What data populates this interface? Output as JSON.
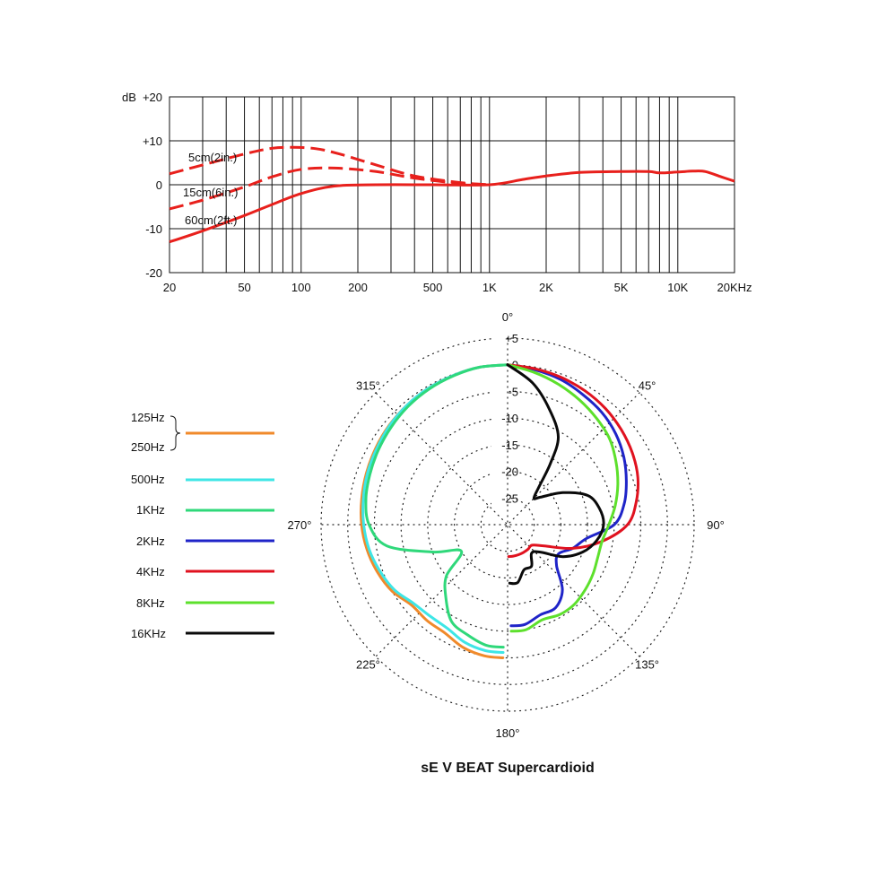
{
  "chart_data": [
    {
      "type": "line",
      "xscale": "log",
      "xlim": [
        20,
        20000
      ],
      "ylim": [
        -20,
        20
      ],
      "y_unit_label": "dB",
      "y_ticks": [
        {
          "value": 20,
          "label": "+20"
        },
        {
          "value": 10,
          "label": "+10"
        },
        {
          "value": 0,
          "label": "0"
        },
        {
          "value": -10,
          "label": "-10"
        },
        {
          "value": -20,
          "label": "-20"
        }
      ],
      "x_ticks": [
        {
          "value": 20,
          "label": "20"
        },
        {
          "value": 50,
          "label": "50"
        },
        {
          "value": 100,
          "label": "100"
        },
        {
          "value": 200,
          "label": "200"
        },
        {
          "value": 500,
          "label": "500"
        },
        {
          "value": 1000,
          "label": "1K"
        },
        {
          "value": 2000,
          "label": "2K"
        },
        {
          "value": 5000,
          "label": "5K"
        },
        {
          "value": 10000,
          "label": "10K"
        },
        {
          "value": 20000,
          "label": "20KHz"
        }
      ],
      "grid": true,
      "series": [
        {
          "name": "5cm(2in.)",
          "style": "dashed",
          "color": "#e8201c",
          "x": [
            20,
            30,
            50,
            70,
            90,
            120,
            160,
            250,
            400,
            700,
            1000
          ],
          "y": [
            2.5,
            4.5,
            7,
            8.3,
            8.5,
            8.2,
            7,
            4.5,
            2,
            0.5,
            0
          ]
        },
        {
          "name": "15cm(6in.)",
          "style": "dashed",
          "color": "#e8201c",
          "x": [
            20,
            30,
            50,
            70,
            100,
            150,
            250,
            400,
            700,
            1000
          ],
          "y": [
            -5.5,
            -3.5,
            -0.5,
            1.8,
            3.5,
            3.8,
            3,
            1.5,
            0.3,
            0
          ]
        },
        {
          "name": "60cm(2ft.)",
          "style": "solid",
          "color": "#e8201c",
          "x": [
            20,
            30,
            50,
            70,
            100,
            150,
            250,
            500,
            1000,
            1500,
            2000,
            3000,
            5000,
            7000,
            8000,
            10000,
            12000,
            14000,
            17000,
            20000
          ],
          "y": [
            -13,
            -10.5,
            -7,
            -4.5,
            -2,
            -0.3,
            0,
            0,
            0,
            1.2,
            2,
            2.8,
            3,
            3,
            2.7,
            2.9,
            3.1,
            3,
            1.8,
            0.8
          ]
        }
      ]
    },
    {
      "type": "polar",
      "title": "sE V BEAT Supercardioid",
      "radial_unit": "dB",
      "radial_ticks": [
        {
          "value": 5,
          "label": "+5"
        },
        {
          "value": 0,
          "label": "0"
        },
        {
          "value": -5,
          "label": "-5"
        },
        {
          "value": -10,
          "label": "-10"
        },
        {
          "value": -15,
          "label": "-15"
        },
        {
          "value": -20,
          "label": "-20"
        },
        {
          "value": -25,
          "label": "-25"
        }
      ],
      "angle_labels": [
        {
          "angle": 0,
          "label": "0°"
        },
        {
          "angle": 45,
          "label": "45°"
        },
        {
          "angle": 90,
          "label": "90°"
        },
        {
          "angle": 135,
          "label": "135°"
        },
        {
          "angle": 180,
          "label": "180°"
        },
        {
          "angle": 225,
          "label": "225°"
        },
        {
          "angle": 270,
          "label": "270°"
        },
        {
          "angle": 315,
          "label": "315°"
        }
      ],
      "legend": [
        {
          "labels": [
            "125Hz",
            "250Hz"
          ],
          "color": "#f08a2b"
        },
        {
          "labels": [
            "500Hz"
          ],
          "color": "#3ee6e6"
        },
        {
          "labels": [
            "1KHz"
          ],
          "color": "#2fd87a"
        },
        {
          "labels": [
            "2KHz"
          ],
          "color": "#1f24c8"
        },
        {
          "labels": [
            "4KHz"
          ],
          "color": "#e0121f"
        },
        {
          "labels": [
            "8KHz"
          ],
          "color": "#5de02c"
        },
        {
          "labels": [
            "16KHz"
          ],
          "color": "#0a0a0a"
        }
      ],
      "series": [
        {
          "name": "125Hz / 250Hz",
          "color": "#f08a2b",
          "theta": [
            360,
            350,
            340,
            330,
            320,
            310,
            300,
            290,
            280,
            270,
            260,
            250,
            240,
            230,
            220,
            210,
            200,
            190,
            182
          ],
          "r": [
            0,
            0,
            -0.2,
            -0.4,
            -0.7,
            -1,
            -1.4,
            -1.8,
            -2.2,
            -2.6,
            -3.2,
            -4,
            -5,
            -6.5,
            -6.5,
            -6.5,
            -5.5,
            -5,
            -5
          ]
        },
        {
          "name": "500Hz",
          "color": "#3ee6e6",
          "theta": [
            360,
            350,
            340,
            330,
            320,
            310,
            300,
            290,
            280,
            270,
            260,
            250,
            240,
            230,
            220,
            210,
            200,
            190,
            182
          ],
          "r": [
            0,
            0,
            -0.2,
            -0.4,
            -0.7,
            -1.1,
            -1.6,
            -2,
            -2.5,
            -3,
            -3.6,
            -4.5,
            -5.5,
            -7,
            -7.5,
            -7.5,
            -6.5,
            -6,
            -6
          ]
        },
        {
          "name": "1KHz",
          "color": "#2fd87a",
          "theta": [
            360,
            350,
            340,
            330,
            320,
            310,
            300,
            290,
            280,
            270,
            260,
            250,
            240,
            230,
            220,
            210,
            200,
            190,
            182
          ],
          "r": [
            0,
            0,
            -0.3,
            -0.6,
            -1,
            -1.5,
            -2,
            -2.5,
            -3,
            -4,
            -7,
            -15,
            -20,
            -15,
            -12,
            -9,
            -8,
            -7,
            -7
          ]
        },
        {
          "name": "2KHz",
          "color": "#1f24c8",
          "theta": [
            0,
            10,
            20,
            30,
            40,
            50,
            60,
            70,
            80,
            90,
            100,
            110,
            120,
            130,
            140,
            150,
            160,
            170,
            178
          ],
          "r": [
            0,
            -0.5,
            -1,
            -1.8,
            -2.5,
            -3.5,
            -4.8,
            -6.3,
            -7.8,
            -10,
            -15,
            -17,
            -19,
            -18,
            -14,
            -12,
            -12,
            -11,
            -11
          ]
        },
        {
          "name": "4KHz",
          "color": "#e0121f",
          "theta": [
            0,
            10,
            20,
            30,
            40,
            50,
            60,
            70,
            80,
            90,
            100,
            110,
            120,
            130,
            140,
            150,
            160,
            170,
            178
          ],
          "r": [
            0,
            -0.3,
            -0.6,
            -1,
            -1.5,
            -2.2,
            -3,
            -4,
            -5.5,
            -7.5,
            -12,
            -17,
            -22,
            -24,
            -24,
            -24,
            -24,
            -24,
            -24
          ]
        },
        {
          "name": "8KHz",
          "color": "#5de02c",
          "theta": [
            0,
            10,
            20,
            30,
            40,
            50,
            60,
            70,
            80,
            90,
            100,
            110,
            120,
            130,
            140,
            150,
            160,
            170,
            178
          ],
          "r": [
            0,
            -1,
            -2,
            -3,
            -4,
            -5,
            -6.5,
            -8,
            -9.5,
            -11,
            -12,
            -12,
            -11.5,
            -11,
            -10.5,
            -10.5,
            -11,
            -10,
            -10
          ]
        },
        {
          "name": "16KHz",
          "color": "#0a0a0a",
          "theta": [
            0,
            10,
            20,
            30,
            35,
            40,
            45,
            50,
            60,
            70,
            80,
            90,
            100,
            110,
            120,
            130,
            140,
            150,
            160,
            170,
            178
          ],
          "r": [
            0,
            -3,
            -7,
            -11,
            -16,
            -21,
            -23,
            -22,
            -18,
            -14,
            -12.5,
            -12,
            -13,
            -15,
            -18,
            -22,
            -23,
            -21,
            -21,
            -19,
            -19
          ]
        }
      ]
    }
  ],
  "legend_labels": {
    "brace_label_1": "125Hz",
    "brace_label_2": "250Hz",
    "l500": "500Hz",
    "l1k": "1KHz",
    "l2k": "2KHz",
    "l4k": "4KHz",
    "l8k": "8KHz",
    "l16k": "16KHz"
  },
  "curve_labels": {
    "c5": "5cm(2in.)",
    "c15": "15cm(6in.)",
    "c60": "60cm(2ft.)"
  },
  "y_unit": "dB",
  "title": "sE V BEAT Supercardioid"
}
